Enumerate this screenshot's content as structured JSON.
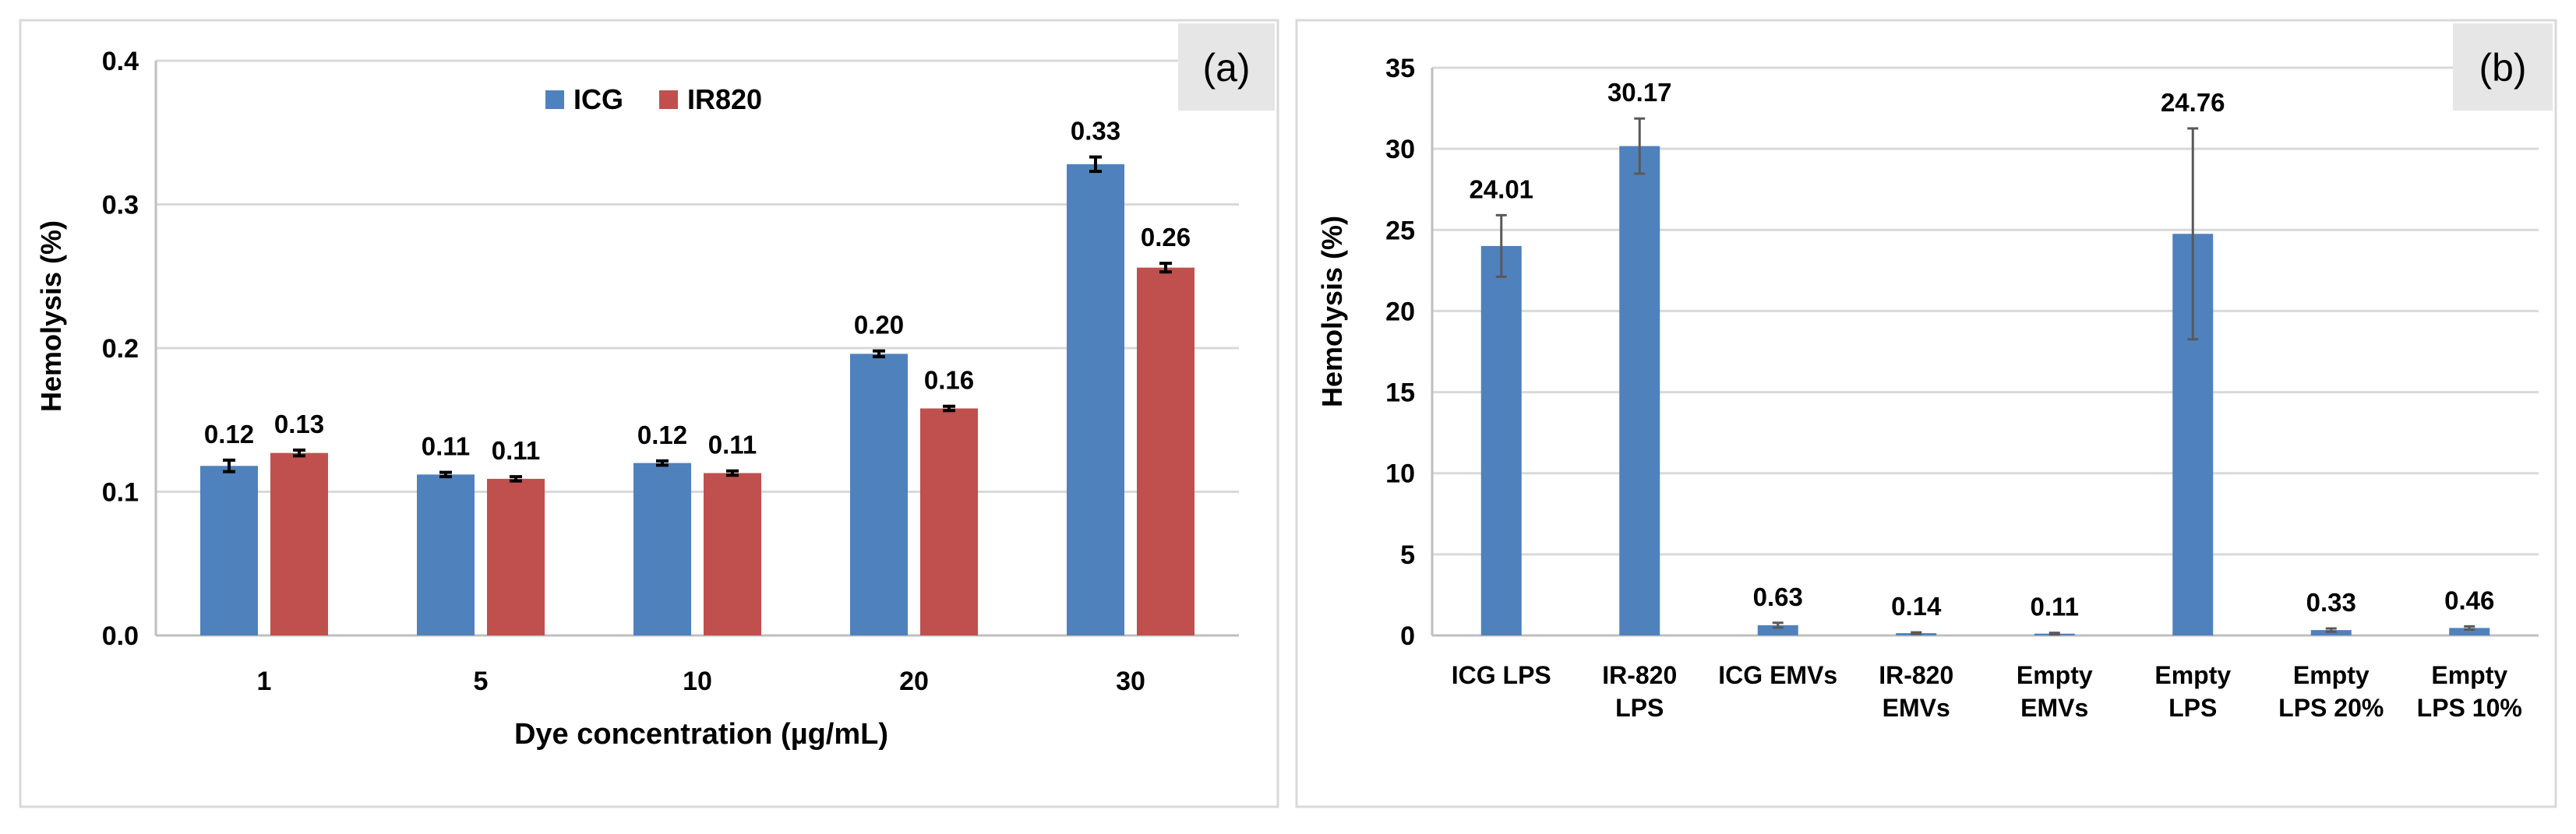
{
  "chart_data": [
    {
      "type": "bar",
      "panel_label": "(a)",
      "title": "",
      "xlabel": "Dye concentration (µg/mL)",
      "ylabel": "Hemolysis (%)",
      "ylim": [
        0,
        0.4
      ],
      "yticks": [
        0,
        0.1,
        0.2,
        0.3,
        0.4
      ],
      "ytick_labels": [
        "0.0",
        "0.1",
        "0.2",
        "0.3",
        "0.4"
      ],
      "grid": true,
      "legend_position": "top-center",
      "categories": [
        "1",
        "5",
        "10",
        "20",
        "30"
      ],
      "series": [
        {
          "name": "ICG",
          "color": "#4f81bd",
          "values": [
            0.118,
            0.112,
            0.12,
            0.196,
            0.328
          ],
          "errors": [
            0.004,
            0.0015,
            0.0015,
            0.002,
            0.005
          ],
          "data_labels": [
            "0.12",
            "0.11",
            "0.12",
            "0.20",
            "0.33"
          ]
        },
        {
          "name": "IR820",
          "color": "#c0504d",
          "values": [
            0.127,
            0.109,
            0.113,
            0.158,
            0.256
          ],
          "errors": [
            0.002,
            0.0015,
            0.0015,
            0.0015,
            0.003
          ],
          "data_labels": [
            "0.13",
            "0.11",
            "0.11",
            "0.16",
            "0.26"
          ]
        }
      ]
    },
    {
      "type": "bar",
      "panel_label": "(b)",
      "title": "",
      "xlabel": "",
      "ylabel": "Hemolysis (%)",
      "ylim": [
        0,
        35
      ],
      "yticks": [
        0,
        5,
        10,
        15,
        20,
        25,
        30,
        35
      ],
      "ytick_labels": [
        "0",
        "5",
        "10",
        "15",
        "20",
        "25",
        "30",
        "35"
      ],
      "grid": true,
      "categories": [
        [
          "ICG LPS"
        ],
        [
          "IR-820",
          "LPS"
        ],
        [
          "ICG EMVs"
        ],
        [
          "IR-820",
          "EMVs"
        ],
        [
          "Empty",
          "EMVs"
        ],
        [
          "Empty",
          "LPS"
        ],
        [
          "Empty",
          "LPS 20%"
        ],
        [
          "Empty",
          "LPS 10%"
        ]
      ],
      "series": [
        {
          "name": "Hemolysis",
          "color": "#4f81bd",
          "values": [
            24.01,
            30.17,
            0.63,
            0.14,
            0.11,
            24.76,
            0.33,
            0.46
          ],
          "errors": [
            1.9,
            1.7,
            0.15,
            0.05,
            0.05,
            6.5,
            0.1,
            0.1
          ],
          "data_labels": [
            "24.01",
            "30.17",
            "0.63",
            "0.14",
            "0.11",
            "24.76",
            "0.33",
            "0.46"
          ]
        }
      ]
    }
  ],
  "colors": {
    "grid": "#d9d9d9",
    "axis": "#bfbfbf",
    "text": "#000000",
    "error_bar": "#595959",
    "panel_label_bg": "#e6e6e6",
    "border": "#d9d9d9"
  }
}
